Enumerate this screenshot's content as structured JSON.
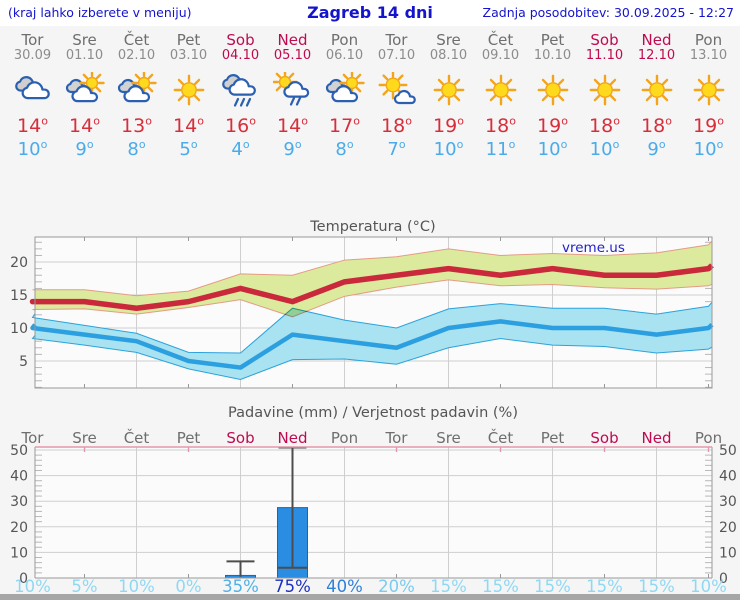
{
  "header": {
    "menu_hint": "(kraj lahko izberete v meniju)",
    "title": "Zagreb 14 dni",
    "last_update": "Zadnja posodobitev: 30.09.2025 - 12:27"
  },
  "colors": {
    "link_blue": "#1414cc",
    "day_gray": "#6e6e6e",
    "date_gray": "#8c8c8c",
    "weekend_highlight": "#c00a50",
    "high_temp_red": "#d62f3c",
    "low_temp_blue": "#4aabea",
    "axis_text": "#555555",
    "grid": "#cfcfcf",
    "plot_border": "#999999",
    "precip_top_border": "#e698aa",
    "bar_blue": "#2a8de2",
    "whisker_gray": "#4d4d4d"
  },
  "forecast": {
    "days": [
      {
        "name": "Tor",
        "date": "30.09",
        "highlight": false,
        "icon": "cloudy",
        "high": "14",
        "low": "10"
      },
      {
        "name": "Sre",
        "date": "01.10",
        "highlight": false,
        "icon": "partly-cloudy",
        "high": "14",
        "low": "9"
      },
      {
        "name": "Čet",
        "date": "02.10",
        "highlight": false,
        "icon": "partly-cloudy",
        "high": "13",
        "low": "8"
      },
      {
        "name": "Pet",
        "date": "03.10",
        "highlight": false,
        "icon": "sunny",
        "high": "14",
        "low": "5"
      },
      {
        "name": "Sob",
        "date": "04.10",
        "highlight": true,
        "icon": "rain",
        "high": "16",
        "low": "4"
      },
      {
        "name": "Ned",
        "date": "05.10",
        "highlight": true,
        "icon": "sun-rain",
        "high": "14",
        "low": "9"
      },
      {
        "name": "Pon",
        "date": "06.10",
        "highlight": false,
        "icon": "partly-cloudy",
        "high": "17",
        "low": "8"
      },
      {
        "name": "Tor",
        "date": "07.10",
        "highlight": false,
        "icon": "mostly-sunny",
        "high": "18",
        "low": "7"
      },
      {
        "name": "Sre",
        "date": "08.10",
        "highlight": false,
        "icon": "sunny",
        "high": "19",
        "low": "10"
      },
      {
        "name": "Čet",
        "date": "09.10",
        "highlight": false,
        "icon": "sunny",
        "high": "18",
        "low": "11"
      },
      {
        "name": "Pet",
        "date": "10.10",
        "highlight": false,
        "icon": "sunny",
        "high": "19",
        "low": "10"
      },
      {
        "name": "Sob",
        "date": "11.10",
        "highlight": true,
        "icon": "sunny",
        "high": "18",
        "low": "10"
      },
      {
        "name": "Ned",
        "date": "12.10",
        "highlight": true,
        "icon": "sunny",
        "high": "18",
        "low": "9"
      },
      {
        "name": "Pon",
        "date": "13.10",
        "highlight": false,
        "icon": "sunny",
        "high": "19",
        "low": "10"
      }
    ]
  },
  "chart_data": [
    {
      "type": "line",
      "title": "Temperatura (°C)",
      "watermark": "vreme.us",
      "ylim": [
        0.9,
        23.8
      ],
      "yticks": [
        5,
        10,
        15,
        20
      ],
      "grid": true,
      "x_categories": [
        "Tor 30.09",
        "Sre 01.10",
        "Čet 02.10",
        "Pet 03.10",
        "Sob 04.10",
        "Ned 05.10",
        "Pon 06.10",
        "Tor 07.10",
        "Sre 08.10",
        "Čet 09.10",
        "Pet 10.10",
        "Sob 11.10",
        "Ned 12.10",
        "Pon 13.10"
      ],
      "series": [
        {
          "name": "max-temperature",
          "color": "#c9293a",
          "values": [
            14,
            14,
            13,
            14,
            16,
            14,
            17,
            18,
            19,
            18,
            19,
            18,
            18,
            19
          ]
        },
        {
          "name": "min-temperature",
          "color": "#2b9fe0",
          "values": [
            10,
            9,
            8,
            5,
            4,
            9,
            8,
            7,
            10,
            11,
            10,
            10,
            9,
            10
          ]
        }
      ],
      "bands": [
        {
          "name": "max-temperature-range",
          "fill": "#dcea9e",
          "stroke": "#e59b86",
          "upper": [
            15.8,
            15.8,
            14.9,
            15.6,
            18.2,
            18.0,
            20.3,
            20.8,
            22.0,
            21.0,
            21.3,
            21.0,
            21.4,
            22.6
          ],
          "lower": [
            12.8,
            12.9,
            12.1,
            13.1,
            14.3,
            11.7,
            14.8,
            16.2,
            17.3,
            16.4,
            16.6,
            16.1,
            15.9,
            16.4
          ]
        },
        {
          "name": "min-temperature-range",
          "fill": "#a9e2f0",
          "stroke": "#2ba3dc",
          "upper": [
            11.6,
            10.4,
            9.2,
            6.3,
            6.2,
            13.0,
            11.2,
            10.0,
            12.9,
            13.7,
            13.0,
            13.0,
            12.1,
            13.3
          ],
          "lower": [
            8.4,
            7.4,
            6.3,
            3.8,
            2.2,
            5.2,
            5.3,
            4.5,
            7.0,
            8.4,
            7.4,
            7.2,
            6.2,
            6.8
          ]
        }
      ],
      "overlap_color": "#8fc894"
    },
    {
      "type": "bar",
      "title": "Padavine (mm) / Verjetnost padavin (%)",
      "ylim": [
        0,
        51
      ],
      "yticks": [
        0,
        10,
        20,
        30,
        40,
        50
      ],
      "grid": true,
      "day_labels": [
        {
          "label": "Tor",
          "highlight": false
        },
        {
          "label": "Sre",
          "highlight": false
        },
        {
          "label": "Čet",
          "highlight": false
        },
        {
          "label": "Pet",
          "highlight": false
        },
        {
          "label": "Sob",
          "highlight": true
        },
        {
          "label": "Ned",
          "highlight": true
        },
        {
          "label": "Pon",
          "highlight": false
        },
        {
          "label": "Tor",
          "highlight": false
        },
        {
          "label": "Sre",
          "highlight": false
        },
        {
          "label": "Čet",
          "highlight": false
        },
        {
          "label": "Pet",
          "highlight": false
        },
        {
          "label": "Sob",
          "highlight": true
        },
        {
          "label": "Ned",
          "highlight": true
        },
        {
          "label": "Pon",
          "highlight": false
        }
      ],
      "precip_mm": [
        0,
        0,
        0,
        0,
        1,
        27.5,
        0,
        0,
        0,
        0,
        0,
        0,
        0,
        0
      ],
      "whiskers": [
        {
          "day_index": 4,
          "from": 0.5,
          "to": 6.5,
          "divider": null
        },
        {
          "day_index": 5,
          "from": 4,
          "to": 51,
          "divider": 4
        }
      ],
      "probabilities": [
        {
          "value": "10%",
          "color": "#8fd8f4"
        },
        {
          "value": "5%",
          "color": "#8fd8f4"
        },
        {
          "value": "10%",
          "color": "#8fd8f4"
        },
        {
          "value": "0%",
          "color": "#8fd8f4"
        },
        {
          "value": "35%",
          "color": "#4fb1e8"
        },
        {
          "value": "75%",
          "color": "#1e2ec2"
        },
        {
          "value": "40%",
          "color": "#2f80d8"
        },
        {
          "value": "20%",
          "color": "#79cbf0"
        },
        {
          "value": "15%",
          "color": "#8fd8f4"
        },
        {
          "value": "15%",
          "color": "#8fd8f4"
        },
        {
          "value": "15%",
          "color": "#8fd8f4"
        },
        {
          "value": "15%",
          "color": "#8fd8f4"
        },
        {
          "value": "15%",
          "color": "#8fd8f4"
        },
        {
          "value": "10%",
          "color": "#8fd8f4"
        }
      ]
    }
  ]
}
